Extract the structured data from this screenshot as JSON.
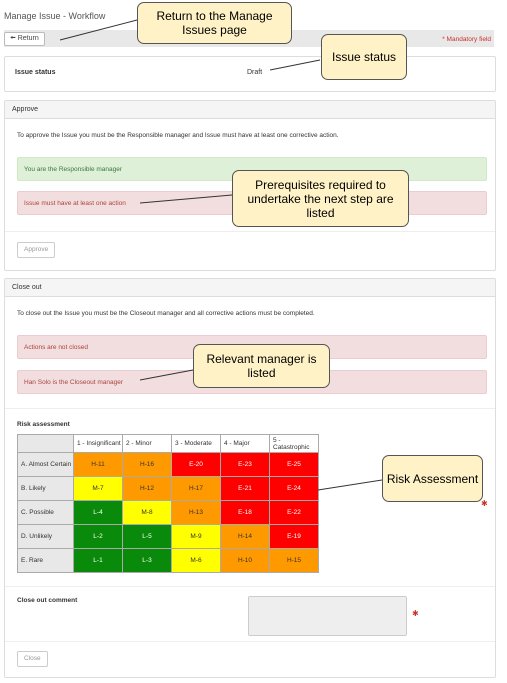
{
  "page_title": "Manage Issue - Workflow",
  "toolbar": {
    "return_label": "Return",
    "mandatory": "* Mandatory field"
  },
  "status": {
    "label": "Issue status",
    "value": "Draft"
  },
  "approve": {
    "header": "Approve",
    "intro": "To approve the Issue you must be the Responsible manager and Issue must have at least one corrective action.",
    "ok_msg": "You are the Responsible manager",
    "bad_msg": "Issue must have at least one action",
    "button": "Approve"
  },
  "closeout": {
    "header": "Close out",
    "intro": "To close out the Issue you must be the Closeout manager and all corrective actions must be completed.",
    "msg1": "Actions are not closed",
    "msg2": "Han Solo is the Closeout manager",
    "risk_title": "Risk assessment",
    "comment_label": "Close out comment",
    "button": "Close"
  },
  "risk": {
    "columns": [
      "1 - Insignificant",
      "2 - Minor",
      "3 - Moderate",
      "4 - Major",
      "5 - Catastrophic"
    ],
    "rows": [
      {
        "label": "A. Almost Certain",
        "cells": [
          "H-11",
          "H-16",
          "E-20",
          "E-23",
          "E-25"
        ]
      },
      {
        "label": "B. Likely",
        "cells": [
          "M-7",
          "H-12",
          "H-17",
          "E-21",
          "E-24"
        ]
      },
      {
        "label": "C. Possible",
        "cells": [
          "L-4",
          "M-8",
          "H-13",
          "E-18",
          "E-22"
        ]
      },
      {
        "label": "D. Unlikely",
        "cells": [
          "L-2",
          "L-5",
          "M-9",
          "H-14",
          "E-19"
        ]
      },
      {
        "label": "E. Rare",
        "cells": [
          "L-1",
          "L-3",
          "M-6",
          "H-10",
          "H-15"
        ]
      }
    ],
    "colors": {
      "L": "#0a8a0a",
      "M": "#ffff00",
      "H": "#ff9900",
      "E": "#ff0000"
    }
  },
  "callouts": {
    "c1": "Return to the Manage Issues page",
    "c2": "Issue status",
    "c3": "Prerequisites required to undertake the next step are listed",
    "c4": "Relevant manager is listed",
    "c5": "Risk Assessment"
  }
}
